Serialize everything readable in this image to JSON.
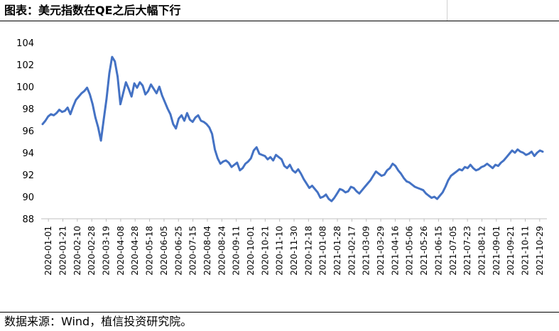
{
  "header": {
    "title": "图表：美元指数在QE之后大幅下行"
  },
  "footer": {
    "source": "数据来源：Wind，植信投资研究院。"
  },
  "chart_data": {
    "type": "line",
    "title": "",
    "xlabel": "",
    "ylabel": "",
    "ylim": [
      88,
      104
    ],
    "yticks": [
      88,
      90,
      92,
      94,
      96,
      98,
      100,
      102,
      104
    ],
    "grid": false,
    "legend": "none",
    "line_color": "#4472C4",
    "xtick_labels": [
      "2020-01-01",
      "2020-01-21",
      "2020-02-10",
      "2020-02-28",
      "2020-03-19",
      "2020-04-08",
      "2020-04-28",
      "2020-05-18",
      "2020-06-05",
      "2020-06-25",
      "2020-07-15",
      "2020-08-04",
      "2020-08-24",
      "2020-09-11",
      "2020-10-01",
      "2020-10-21",
      "2020-11-10",
      "2020-11-30",
      "2020-12-18",
      "2021-01-08",
      "2021-01-28",
      "2021-02-17",
      "2021-03-09",
      "2021-03-29",
      "2021-04-16",
      "2021-05-06",
      "2021-05-26",
      "2021-06-15",
      "2021-07-05",
      "2021-07-23",
      "2021-08-12",
      "2021-09-01",
      "2021-09-21",
      "2021-10-11",
      "2021-10-29"
    ],
    "series": [
      {
        "values": [
          96.6,
          96.9,
          97.3,
          97.5,
          97.4,
          97.6,
          97.9,
          97.7,
          97.8,
          98.1,
          97.5,
          98.2,
          98.8,
          99.1,
          99.4,
          99.6,
          99.9,
          99.3,
          98.4,
          97.2,
          96.3,
          95.1,
          97.0,
          98.9,
          101.2,
          102.7,
          102.3,
          100.9,
          98.4,
          99.4,
          100.4,
          99.8,
          99.1,
          100.3,
          99.9,
          100.4,
          100.1,
          99.3,
          99.6,
          100.2,
          99.8,
          99.4,
          100.0,
          99.2,
          98.6,
          98.0,
          97.5,
          96.6,
          96.2,
          97.1,
          97.4,
          96.9,
          97.6,
          97.0,
          96.8,
          97.2,
          97.4,
          96.9,
          96.8,
          96.6,
          96.3,
          95.7,
          94.3,
          93.5,
          93.0,
          93.2,
          93.3,
          93.1,
          92.7,
          92.9,
          93.1,
          92.4,
          92.6,
          93.0,
          93.2,
          93.5,
          94.2,
          94.5,
          93.9,
          93.8,
          93.7,
          93.4,
          93.6,
          93.3,
          93.8,
          93.6,
          93.4,
          92.8,
          92.6,
          92.9,
          92.4,
          92.2,
          92.5,
          92.1,
          91.6,
          91.2,
          90.8,
          91.0,
          90.7,
          90.4,
          89.9,
          90.0,
          90.2,
          89.8,
          89.6,
          89.9,
          90.3,
          90.7,
          90.6,
          90.4,
          90.5,
          90.9,
          90.8,
          90.5,
          90.3,
          90.6,
          90.9,
          91.2,
          91.5,
          91.9,
          92.3,
          92.1,
          91.9,
          92.0,
          92.4,
          92.6,
          93.0,
          92.8,
          92.4,
          92.1,
          91.7,
          91.4,
          91.3,
          91.1,
          90.9,
          90.8,
          90.7,
          90.6,
          90.3,
          90.1,
          89.9,
          90.0,
          89.8,
          90.1,
          90.4,
          90.9,
          91.5,
          91.9,
          92.1,
          92.3,
          92.5,
          92.4,
          92.7,
          92.6,
          92.9,
          92.6,
          92.4,
          92.5,
          92.7,
          92.8,
          93.0,
          92.8,
          92.6,
          92.9,
          92.8,
          93.1,
          93.3,
          93.6,
          93.9,
          94.2,
          94.0,
          94.3,
          94.1,
          94.0,
          93.8,
          93.9,
          94.1,
          93.7,
          94.0,
          94.2,
          94.1
        ]
      }
    ]
  }
}
